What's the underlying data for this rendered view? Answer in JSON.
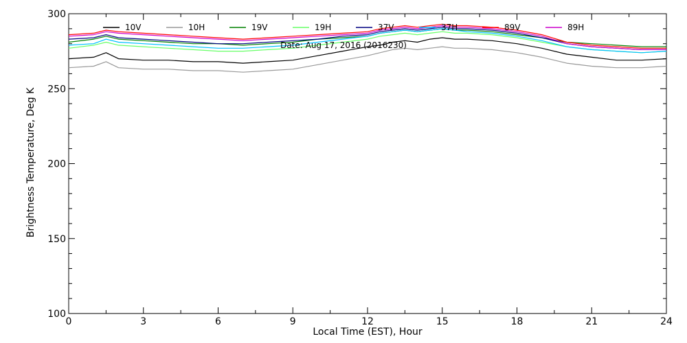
{
  "chart_data": {
    "type": "line",
    "title": "",
    "annotation": "Date: Aug 17, 2016 (2016230)",
    "xlabel": "Local Time (EST), Hour",
    "ylabel": "Brightness Temperature, Deg K",
    "xlim": [
      0,
      24
    ],
    "ylim": [
      100,
      300
    ],
    "xticks": [
      0,
      3,
      6,
      9,
      12,
      15,
      18,
      21,
      24
    ],
    "yticks": [
      100,
      150,
      200,
      250,
      300
    ],
    "grid": false,
    "legend_position": "top",
    "x": [
      0,
      1,
      1.5,
      2,
      3,
      4,
      5,
      6,
      7,
      8,
      9,
      10,
      11,
      12,
      12.5,
      13,
      13.5,
      14,
      14.5,
      15,
      15.5,
      16,
      17,
      18,
      19,
      20,
      21,
      22,
      23,
      24
    ],
    "series": [
      {
        "name": "10V",
        "color": "#000000",
        "values": [
          270,
          271,
          274,
          270,
          269,
          269,
          268,
          268,
          267,
          268,
          269,
          272,
          275,
          278,
          279,
          281,
          282,
          281,
          283,
          284,
          283,
          283,
          282,
          280,
          277,
          273,
          271,
          269,
          269,
          270
        ]
      },
      {
        "name": "10H",
        "color": "#999999",
        "values": [
          264,
          265,
          268,
          264,
          263,
          263,
          262,
          262,
          261,
          262,
          263,
          266,
          269,
          272,
          274,
          276,
          277,
          276,
          277,
          278,
          277,
          277,
          276,
          274,
          271,
          267,
          265,
          264,
          264,
          265
        ]
      },
      {
        "name": "19V",
        "color": "#008000",
        "values": [
          281,
          283,
          285,
          283,
          282,
          281,
          280,
          280,
          279,
          280,
          281,
          283,
          284,
          285,
          287,
          288,
          289,
          288,
          289,
          290,
          289,
          289,
          288,
          286,
          284,
          281,
          280,
          279,
          278,
          278
        ]
      },
      {
        "name": "19H",
        "color": "#66ff66",
        "values": [
          277,
          279,
          281,
          279,
          278,
          277,
          276,
          275,
          275,
          276,
          277,
          279,
          281,
          283,
          285,
          286,
          287,
          286,
          287,
          288,
          287,
          287,
          286,
          284,
          281,
          278,
          276,
          275,
          274,
          275
        ]
      },
      {
        "name": "37V",
        "color": "#000080",
        "values": [
          283,
          284,
          286,
          284,
          283,
          282,
          281,
          280,
          280,
          281,
          282,
          283,
          285,
          286,
          288,
          289,
          290,
          289,
          290,
          291,
          290,
          290,
          289,
          287,
          284,
          280,
          278,
          277,
          276,
          276
        ]
      },
      {
        "name": "37H",
        "color": "#00bfff",
        "values": [
          279,
          280,
          283,
          281,
          280,
          279,
          278,
          277,
          277,
          278,
          279,
          281,
          283,
          285,
          287,
          288,
          289,
          288,
          289,
          290,
          289,
          288,
          287,
          285,
          282,
          278,
          276,
          275,
          274,
          275
        ]
      },
      {
        "name": "89V",
        "color": "#ff0000",
        "values": [
          286,
          287,
          289,
          288,
          287,
          286,
          285,
          284,
          283,
          284,
          285,
          286,
          287,
          288,
          290,
          291,
          292,
          291,
          292,
          293,
          292,
          292,
          291,
          289,
          286,
          281,
          279,
          278,
          277,
          277
        ]
      },
      {
        "name": "89H",
        "color": "#cc00cc",
        "values": [
          285,
          286,
          288,
          287,
          286,
          285,
          284,
          283,
          282,
          283,
          284,
          285,
          286,
          287,
          289,
          290,
          291,
          290,
          291,
          292,
          291,
          291,
          290,
          288,
          285,
          280,
          278,
          277,
          276,
          276
        ]
      }
    ]
  }
}
